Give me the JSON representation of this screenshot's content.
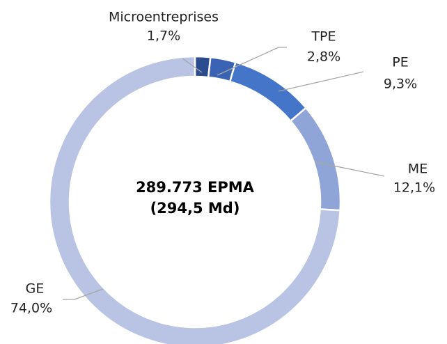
{
  "chart_data": {
    "type": "pie",
    "categories": [
      "Microentreprises",
      "TPE",
      "PE",
      "ME",
      "GE"
    ],
    "values": [
      1.7,
      2.8,
      9.3,
      12.1,
      74.0
    ],
    "value_labels": [
      "1,7%",
      "2,8%",
      "9,3%",
      "12,1%",
      "74,0%"
    ],
    "colors": [
      "#2b4d8f",
      "#3a64b3",
      "#4575c8",
      "#90a5d7",
      "#b9c4e4"
    ],
    "annotations": [
      "289.773 EPMA",
      "(294,5 Md)"
    ]
  }
}
